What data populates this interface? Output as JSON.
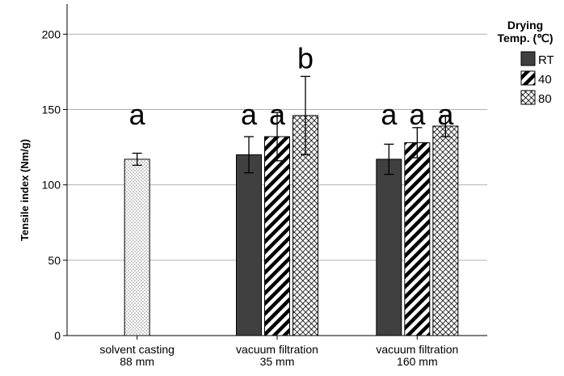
{
  "chart_data": {
    "type": "bar",
    "ylabel": "Tensile index (Nm/g)",
    "ylim": [
      0,
      220
    ],
    "yticks": [
      0,
      50,
      100,
      150,
      200
    ],
    "grid": true,
    "legend": {
      "title_lines": [
        "Drying",
        "Temp. (℃)"
      ],
      "placement": "right"
    },
    "categories": [
      {
        "line1": "solvent casting",
        "line2": "88 mm"
      },
      {
        "line1": "vacuum filtration",
        "line2": "35 mm"
      },
      {
        "line1": "vacuum filtration",
        "line2": "160 mm"
      }
    ],
    "series": [
      {
        "name": "",
        "pattern": "dots",
        "legend": false,
        "values": [
          117,
          null,
          null
        ],
        "err": [
          4,
          null,
          null
        ],
        "sig": [
          "a",
          null,
          null
        ]
      },
      {
        "name": "RT",
        "pattern": "solid",
        "legend": true,
        "values": [
          null,
          120,
          117
        ],
        "err": [
          null,
          12,
          10
        ],
        "sig": [
          null,
          "a",
          "a"
        ]
      },
      {
        "name": "40",
        "pattern": "diagonal",
        "legend": true,
        "values": [
          null,
          132,
          128
        ],
        "err": [
          null,
          16,
          10
        ],
        "sig": [
          null,
          "a",
          "a"
        ]
      },
      {
        "name": "80",
        "pattern": "crosshatch",
        "legend": true,
        "values": [
          null,
          146,
          139
        ],
        "err": [
          null,
          26,
          7
        ],
        "sig": [
          null,
          "b",
          "a"
        ]
      }
    ],
    "colors": {
      "bar_solid": "#404040",
      "outline": "#000000",
      "grid": "#b0b0b0"
    }
  }
}
